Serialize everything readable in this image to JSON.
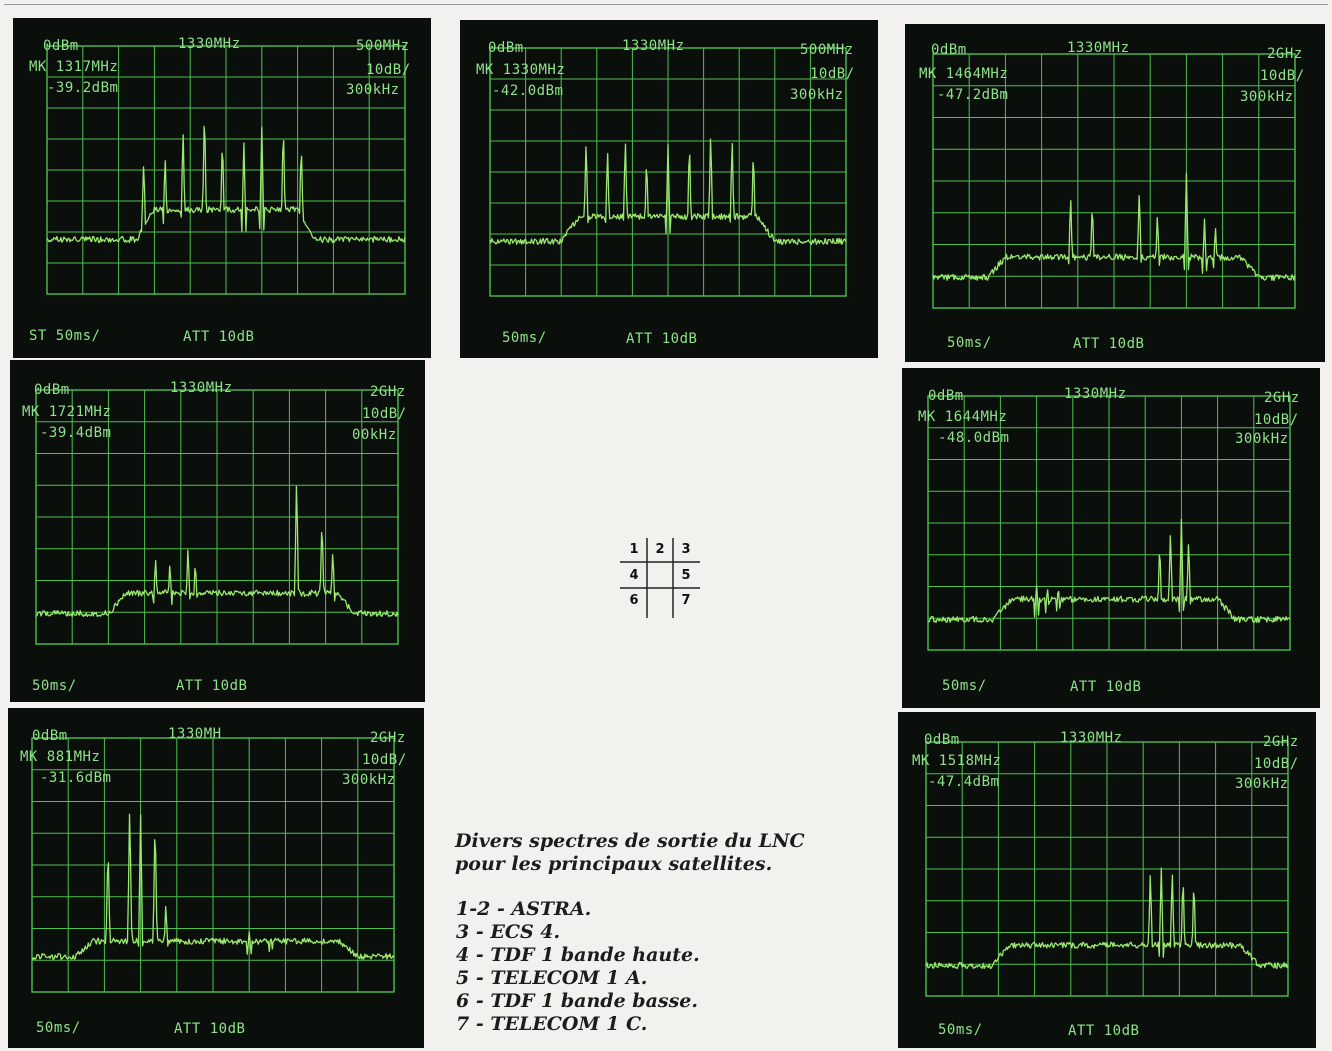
{
  "screens": [
    {
      "ref": "0dBm",
      "center": "1330MHz",
      "span": "500MHz",
      "marker": "MK 1317MHz",
      "level": "-39.2dBm",
      "scale": "10dB/",
      "rbw": "300kHz",
      "sweep": "ST 50ms/",
      "att": "ATT 10dB"
    },
    {
      "ref": "0dBm",
      "center": "1330MHz",
      "span": "500MHz",
      "marker": "MK 1330MHz",
      "level": "-42.0dBm",
      "scale": "10dB/",
      "rbw": "300kHz",
      "sweep": "50ms/",
      "att": "ATT 10dB"
    },
    {
      "ref": "0dBm",
      "center": "1330MHz",
      "span": "2GHz",
      "marker": "MK 1464MHz",
      "level": "-47.2dBm",
      "scale": "10dB/",
      "rbw": "300kHz",
      "sweep": "50ms/",
      "att": "ATT 10dB"
    },
    {
      "ref": "0dBm",
      "center": "1330MHz",
      "span": "2GHz",
      "marker": "MK 1721MHz",
      "level": "-39.4dBm",
      "scale": "10dB/",
      "rbw": "00kHz",
      "sweep": "50ms/",
      "att": "ATT 10dB"
    },
    {
      "ref": "0dBm",
      "center": "1330MHz",
      "span": "2GHz",
      "marker": "MK 1644MHz",
      "level": "-48.0dBm",
      "scale": "10dB/",
      "rbw": "300kHz",
      "sweep": "50ms/",
      "att": "ATT 10dB"
    },
    {
      "ref": "0dBm",
      "center": "1330MH",
      "span": "2GHz",
      "marker": "MK 881MHz",
      "level": "-31.6dBm",
      "scale": "10dB/",
      "rbw": "300kHz",
      "sweep": "50ms/",
      "att": "ATT 10dB"
    },
    {
      "ref": "0dBm",
      "center": "1330MHz",
      "span": "2GHz",
      "marker": "MK 1518MHz",
      "level": "-47.4dBm",
      "scale": "10dB/",
      "rbw": "300kHz",
      "sweep": "50ms/",
      "att": "ATT 10dB"
    }
  ],
  "key_grid": [
    "1",
    "2",
    "3",
    "4",
    "5",
    "6",
    "7"
  ],
  "caption": {
    "line1": "Divers spectres de sortie du LNC",
    "line2": "pour les principaux satellites."
  },
  "legend": [
    "1-2 - ASTRA.",
    "3 - ECS 4.",
    "4 - TDF 1 bande haute.",
    "5 - TELECOM 1 A.",
    "6 - TDF 1 bande basse.",
    "7 - TELECOM 1 C."
  ],
  "colors": {
    "trace": "#9be86f",
    "grid": "#4fbf50",
    "screen_bg": "#0b0f0b",
    "text": "#8fe28a"
  }
}
